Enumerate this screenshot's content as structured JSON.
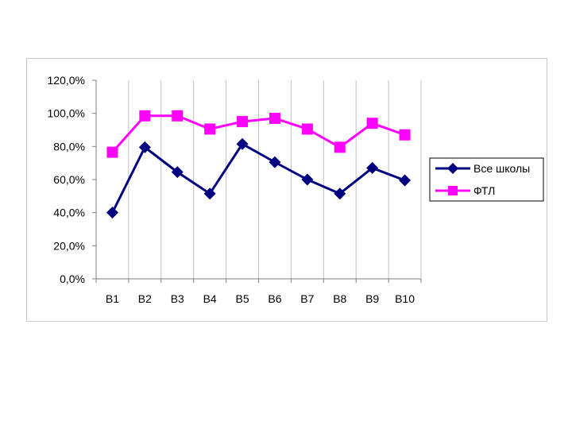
{
  "chart_data": {
    "type": "line",
    "categories": [
      "B1",
      "B2",
      "B3",
      "B4",
      "B5",
      "B6",
      "B7",
      "B8",
      "B9",
      "B10"
    ],
    "series": [
      {
        "name": "Все школы",
        "color": "#000080",
        "marker": "diamond",
        "values": [
          40,
          79.5,
          64.5,
          51.5,
          81.5,
          70.5,
          60,
          51.5,
          67,
          59.5
        ]
      },
      {
        "name": "ФТЛ",
        "color": "#ff00ff",
        "marker": "square",
        "values": [
          76.5,
          98.5,
          98.5,
          90.5,
          95,
          97,
          90.5,
          79.5,
          94,
          87
        ]
      }
    ],
    "ylim": [
      0,
      120
    ],
    "yticks": [
      "0,0%",
      "20,0%",
      "40,0%",
      "60,0%",
      "80,0%",
      "100,0%",
      "120,0%"
    ],
    "ytick_values": [
      0,
      20,
      40,
      60,
      80,
      100,
      120
    ],
    "grid": "vertical",
    "legend": "right",
    "title": "",
    "xlabel": "",
    "ylabel": ""
  }
}
